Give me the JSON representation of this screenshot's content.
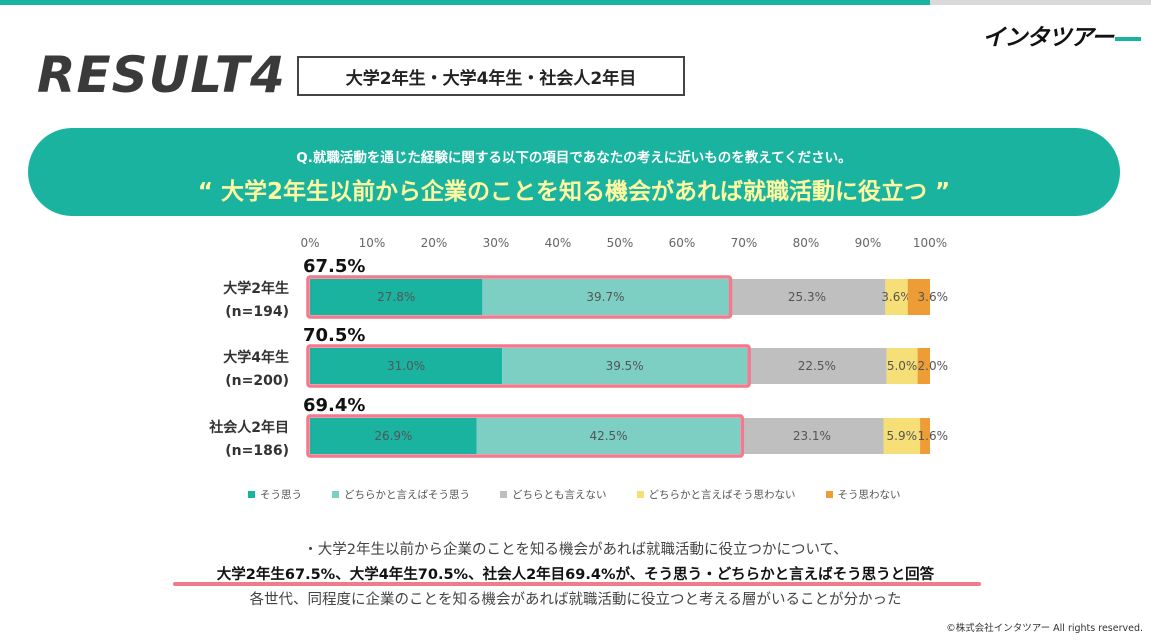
{
  "logo": {
    "text": "インタツアー"
  },
  "header": {
    "title": "RESULT4",
    "group_label": "大学2年生・大学4年生・社会人2年目"
  },
  "banner": {
    "question": "Q.就職活動を通じた経験に関する以下の項目であなたの考えに近いものを教えてください。",
    "statement": "“ 大学2年生以前から企業のことを知る機会があれば就職活動に役立つ ”"
  },
  "colors": {
    "accent": "#1ab3a0",
    "s1": "#1ab3a0",
    "s2": "#7dcfc4",
    "s3": "#bfbfbf",
    "s4": "#f7df78",
    "s5": "#ee9c36",
    "highlight": "#f07a8e"
  },
  "chart_data": {
    "type": "bar",
    "orientation": "horizontal",
    "stacked": true,
    "percent": true,
    "categories": [
      "大学2年生\n(n=194)",
      "大学4年生\n(n=200)",
      "社会人2年目\n(n=186)"
    ],
    "series": [
      {
        "name": "そう思う",
        "values": [
          27.8,
          31.0,
          26.9
        ]
      },
      {
        "name": "どちらかと言えばそう思う",
        "values": [
          39.7,
          39.5,
          42.5
        ]
      },
      {
        "name": "どちらとも言えない",
        "values": [
          25.3,
          22.5,
          23.1
        ]
      },
      {
        "name": "どちらかと言えばそう思わない",
        "values": [
          3.6,
          5.0,
          5.9
        ]
      },
      {
        "name": "そう思わない",
        "values": [
          3.6,
          2.0,
          1.6
        ]
      }
    ],
    "totals_highlight": [
      "67.5%",
      "70.5%",
      "69.4%"
    ],
    "x_ticks": [
      "0%",
      "10%",
      "20%",
      "30%",
      "40%",
      "50%",
      "60%",
      "70%",
      "80%",
      "90%",
      "100%"
    ],
    "xlim": [
      0,
      100
    ],
    "legend_position": "bottom"
  },
  "summary": {
    "line1": "・大学2年生以前から企業のことを知る機会があれば就職活動に役立つかについて、",
    "line2": "大学2年生67.5%、大学4年生70.5%、社会人2年目69.4%が、そう思う・どちらかと言えばそう思うと回答",
    "line3": "各世代、同程度に企業のことを知る機会があれば就職活動に役立つと考える層がいることが分かった"
  },
  "footer": {
    "copyright": "©株式会社インタツアー All rights reserved."
  }
}
